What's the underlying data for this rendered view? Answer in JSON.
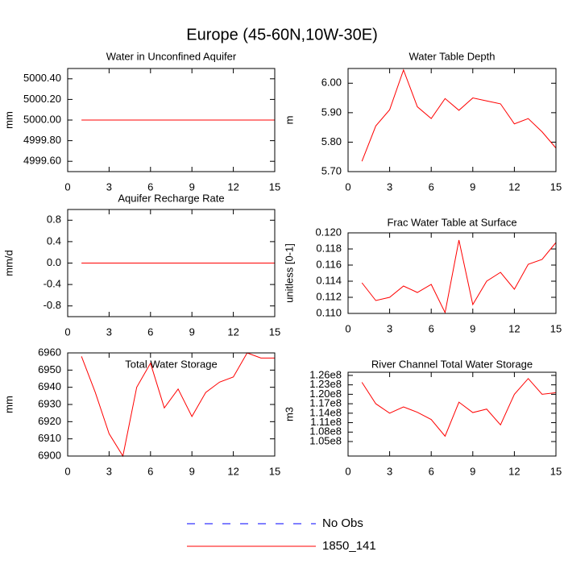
{
  "title": "Europe (45-60N,10W-30E)",
  "legend": [
    {
      "name": "No Obs",
      "color": "#0000ff",
      "style": "dashed"
    },
    {
      "name": "1850_141",
      "color": "#ff0000",
      "style": "solid"
    }
  ],
  "chart_data": [
    {
      "type": "line",
      "title": "Water in Unconfined Aquifer",
      "ylabel": "mm",
      "x": [
        1,
        2,
        3,
        4,
        5,
        6,
        7,
        8,
        9,
        10,
        11,
        12,
        13,
        14,
        15
      ],
      "xlim": [
        0,
        15
      ],
      "xticks": [
        0,
        3,
        6,
        9,
        12,
        15
      ],
      "ylim": [
        4999.5,
        5000.5
      ],
      "yticks": [
        {
          "value": 4999.6,
          "label": "4999.60"
        },
        {
          "value": 4999.8,
          "label": "4999.80"
        },
        {
          "value": 5000,
          "label": "5000.00"
        },
        {
          "value": 5000.2,
          "label": "5000.20"
        },
        {
          "value": 5000.4,
          "label": "5000.40"
        }
      ],
      "series": [
        {
          "color": "#ff0000",
          "values": [
            5000,
            5000,
            5000,
            5000,
            5000,
            5000,
            5000,
            5000,
            5000,
            5000,
            5000,
            5000,
            5000,
            5000,
            5000
          ]
        }
      ]
    },
    {
      "type": "line",
      "title": "Water Table Depth",
      "ylabel": "m",
      "x": [
        1,
        2,
        3,
        4,
        5,
        6,
        7,
        8,
        9,
        10,
        11,
        12,
        13,
        14,
        15
      ],
      "xlim": [
        0,
        15
      ],
      "xticks": [
        0,
        3,
        6,
        9,
        12,
        15
      ],
      "ylim": [
        5.7,
        6.05
      ],
      "yticks": [
        {
          "value": 5.7,
          "label": "5.70"
        },
        {
          "value": 5.8,
          "label": "5.80"
        },
        {
          "value": 5.9,
          "label": "5.90"
        },
        {
          "value": 6.0,
          "label": "6.00"
        }
      ],
      "series": [
        {
          "color": "#ff0000",
          "values": [
            5.735,
            5.855,
            5.91,
            6.045,
            5.92,
            5.88,
            5.948,
            5.908,
            5.95,
            5.94,
            5.93,
            5.862,
            5.88,
            5.835,
            5.78
          ]
        }
      ]
    },
    {
      "type": "line",
      "title": "Aquifer Recharge Rate",
      "ylabel": "mm/d",
      "x": [
        1,
        2,
        3,
        4,
        5,
        6,
        7,
        8,
        9,
        10,
        11,
        12,
        13,
        14,
        15
      ],
      "xlim": [
        0,
        15
      ],
      "xticks": [
        0,
        3,
        6,
        9,
        12,
        15
      ],
      "ylim": [
        -1,
        1
      ],
      "yticks": [
        -0.8,
        -0.4,
        {
          "value": 0,
          "label": "0.0"
        },
        0.4,
        0.8
      ],
      "series": [
        {
          "color": "#ff0000",
          "values": [
            0,
            0,
            0,
            0,
            0,
            0,
            0,
            0,
            0,
            0,
            0,
            0,
            0,
            0,
            0
          ]
        }
      ]
    },
    {
      "type": "line",
      "title": "Frac Water Table at Surface",
      "ylabel": "unitless [0-1]",
      "x": [
        1,
        2,
        3,
        4,
        5,
        6,
        7,
        8,
        9,
        10,
        11,
        12,
        13,
        14,
        15
      ],
      "xlim": [
        0,
        15
      ],
      "xticks": [
        0,
        3,
        6,
        9,
        12,
        15
      ],
      "ylim": [
        0.11,
        0.12
      ],
      "yticks": [
        {
          "value": 0.11,
          "label": "0.110"
        },
        0.112,
        0.114,
        0.116,
        0.118,
        {
          "value": 0.12,
          "label": "0.120"
        }
      ],
      "series": [
        {
          "color": "#ff0000",
          "values": [
            0.1138,
            0.1116,
            0.112,
            0.1134,
            0.1126,
            0.1136,
            0.1101,
            0.1191,
            0.1111,
            0.114,
            0.1151,
            0.113,
            0.1161,
            0.1167,
            0.1188
          ]
        }
      ]
    },
    {
      "type": "line",
      "title": "Total Water Storage",
      "ylabel": "mm",
      "x": [
        1,
        2,
        3,
        4,
        5,
        6,
        7,
        8,
        9,
        10,
        11,
        12,
        13,
        14,
        15
      ],
      "xlim": [
        0,
        15
      ],
      "xticks": [
        0,
        3,
        6,
        9,
        12,
        15
      ],
      "ylim": [
        6900,
        6960
      ],
      "yticks": [
        6900,
        6910,
        6920,
        6930,
        6940,
        6950,
        6960
      ],
      "series": [
        {
          "color": "#ff0000",
          "values": [
            6958,
            6937,
            6913,
            6900,
            6940,
            6954,
            6928,
            6939,
            6923,
            6937,
            6943,
            6946,
            6960,
            6957,
            6957
          ]
        }
      ]
    },
    {
      "type": "line",
      "title": "River Channel Total Water Storage",
      "ylabel": "m3",
      "x": [
        1,
        2,
        3,
        4,
        5,
        6,
        7,
        8,
        9,
        10,
        11,
        12,
        13,
        14,
        15
      ],
      "xlim": [
        0,
        15
      ],
      "xticks": [
        0,
        3,
        6,
        9,
        12,
        15
      ],
      "ylim": [
        100400000,
        127000000
      ],
      "yticks": [
        {
          "value": 105000000,
          "label": "1.05e8"
        },
        {
          "value": 108000000,
          "label": "1.08e8"
        },
        {
          "value": 111000000,
          "label": "1.11e8"
        },
        {
          "value": 114000000,
          "label": "1.14e8"
        },
        {
          "value": 117000000,
          "label": "1.17e8"
        },
        {
          "value": 120000000,
          "label": "1.20e8"
        },
        {
          "value": 123000000,
          "label": "1.23e8"
        },
        {
          "value": 126000000,
          "label": "1.26e8"
        }
      ],
      "series": [
        {
          "color": "#ff0000",
          "values": [
            123800000,
            117000000,
            114000000,
            116000000,
            114300000,
            112000000,
            106700000,
            117500000,
            114200000,
            115300000,
            110300000,
            120000000,
            125000000,
            120000000,
            120500000
          ]
        }
      ]
    }
  ]
}
